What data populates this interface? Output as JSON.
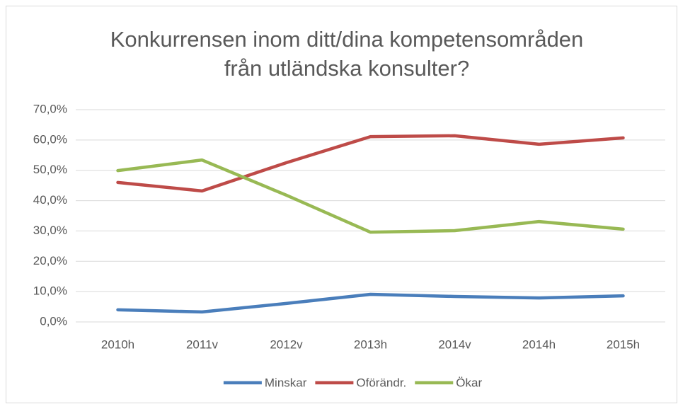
{
  "chart_data": {
    "type": "line",
    "title": [
      "Konkurrensen inom ditt/dina kompetensområden",
      "från utländska konsulter?"
    ],
    "categories": [
      "2010h",
      "2011v",
      "2012v",
      "2013h",
      "2014v",
      "2014h",
      "2015h"
    ],
    "series": [
      {
        "name": "Minskar",
        "color": "#4a7ebb",
        "values": [
          4.0,
          3.3,
          6.1,
          9.1,
          8.4,
          7.9,
          8.6
        ]
      },
      {
        "name": "Oförändr.",
        "color": "#be4b48",
        "values": [
          46.0,
          43.2,
          52.5,
          61.1,
          61.4,
          58.6,
          60.7
        ]
      },
      {
        "name": "Ökar",
        "color": "#98b954",
        "values": [
          49.9,
          53.4,
          41.8,
          29.6,
          30.1,
          33.1,
          30.6
        ]
      }
    ],
    "ylim": [
      0,
      70
    ],
    "yticks": [
      {
        "value": 0,
        "label": "0,0%"
      },
      {
        "value": 10,
        "label": "10,0%"
      },
      {
        "value": 20,
        "label": "20,0%"
      },
      {
        "value": 30,
        "label": "30,0%"
      },
      {
        "value": 40,
        "label": "40,0%"
      },
      {
        "value": 50,
        "label": "50,0%"
      },
      {
        "value": 60,
        "label": "60,0%"
      },
      {
        "value": 70,
        "label": "70,0%"
      }
    ],
    "grid": true,
    "legend": "bottom"
  }
}
